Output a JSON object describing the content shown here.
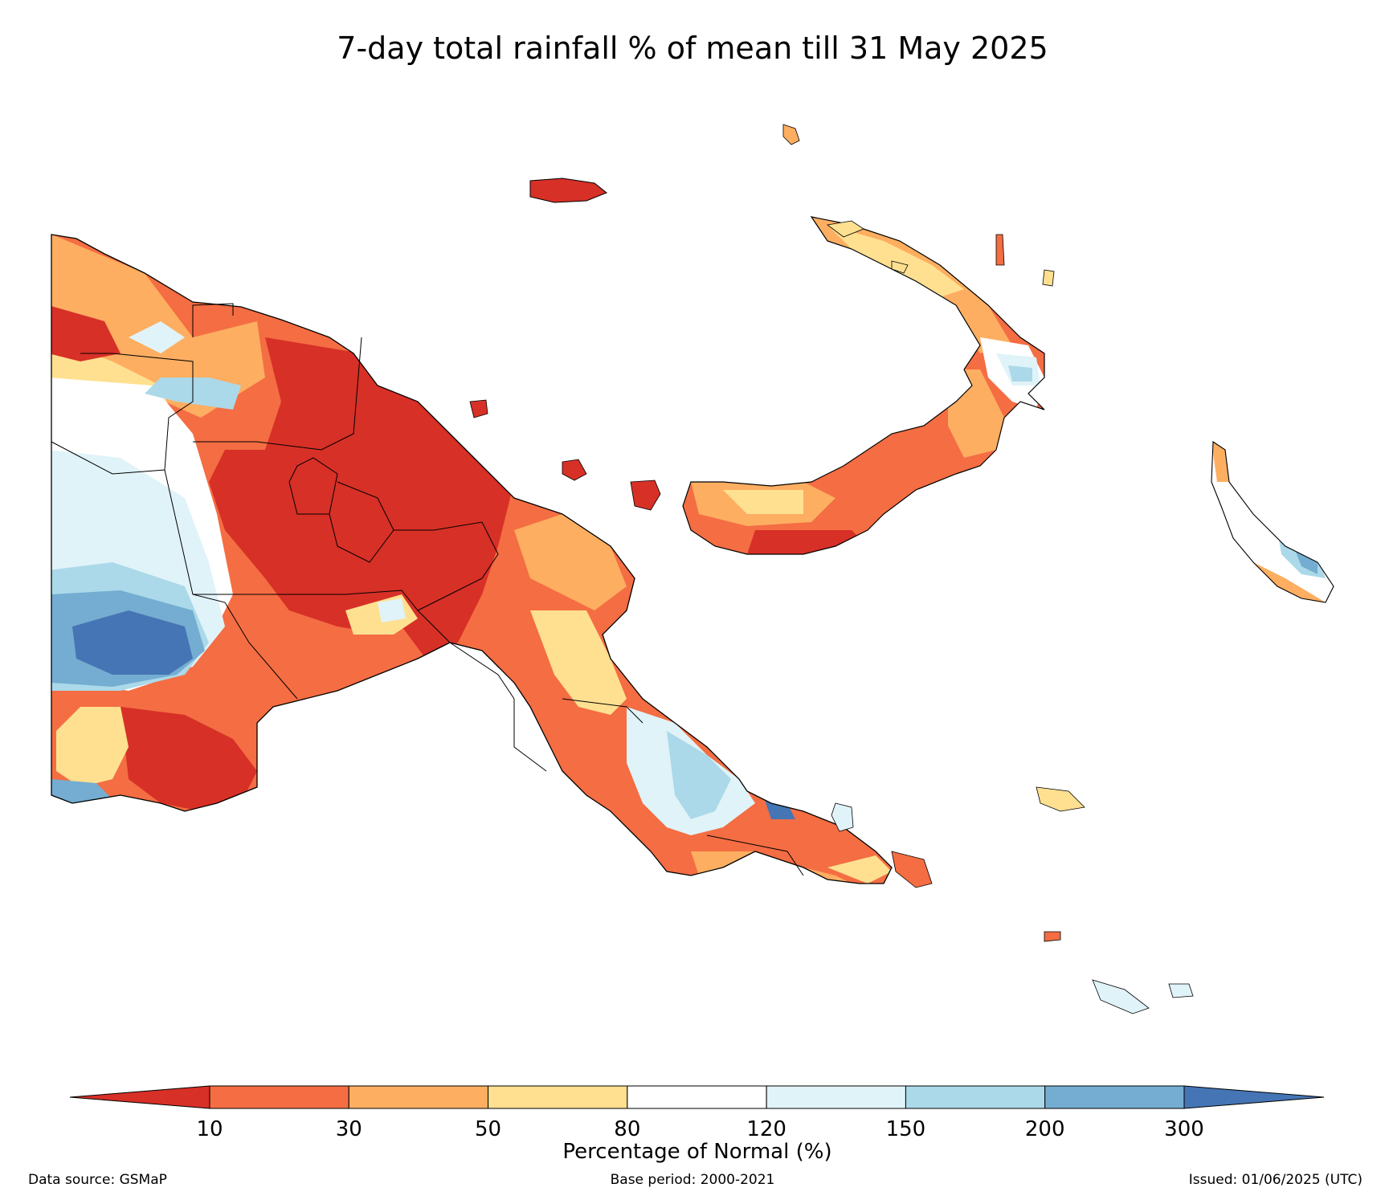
{
  "title": "7-day total rainfall % of mean till 31 May 2025",
  "legend": {
    "label": "Percentage of Normal (%)",
    "ticks": [
      "10",
      "30",
      "50",
      "80",
      "120",
      "150",
      "200",
      "300"
    ],
    "bins": [
      {
        "range": "<10",
        "color": "#d73027"
      },
      {
        "range": "10-30",
        "color": "#f46d43"
      },
      {
        "range": "30-50",
        "color": "#fdae61"
      },
      {
        "range": "50-80",
        "color": "#fee090"
      },
      {
        "range": "80-120",
        "color": "#ffffff"
      },
      {
        "range": "120-150",
        "color": "#e0f3f8"
      },
      {
        "range": "150-200",
        "color": "#abd9e9"
      },
      {
        "range": "200-300",
        "color": "#74add1"
      },
      {
        "range": ">300",
        "color": "#4575b4"
      }
    ]
  },
  "footer": {
    "source": "Data source: GSMaP",
    "base_period": "Base period: 2000-2021",
    "issued": "Issued: 01/06/2025 (UTC)"
  }
}
